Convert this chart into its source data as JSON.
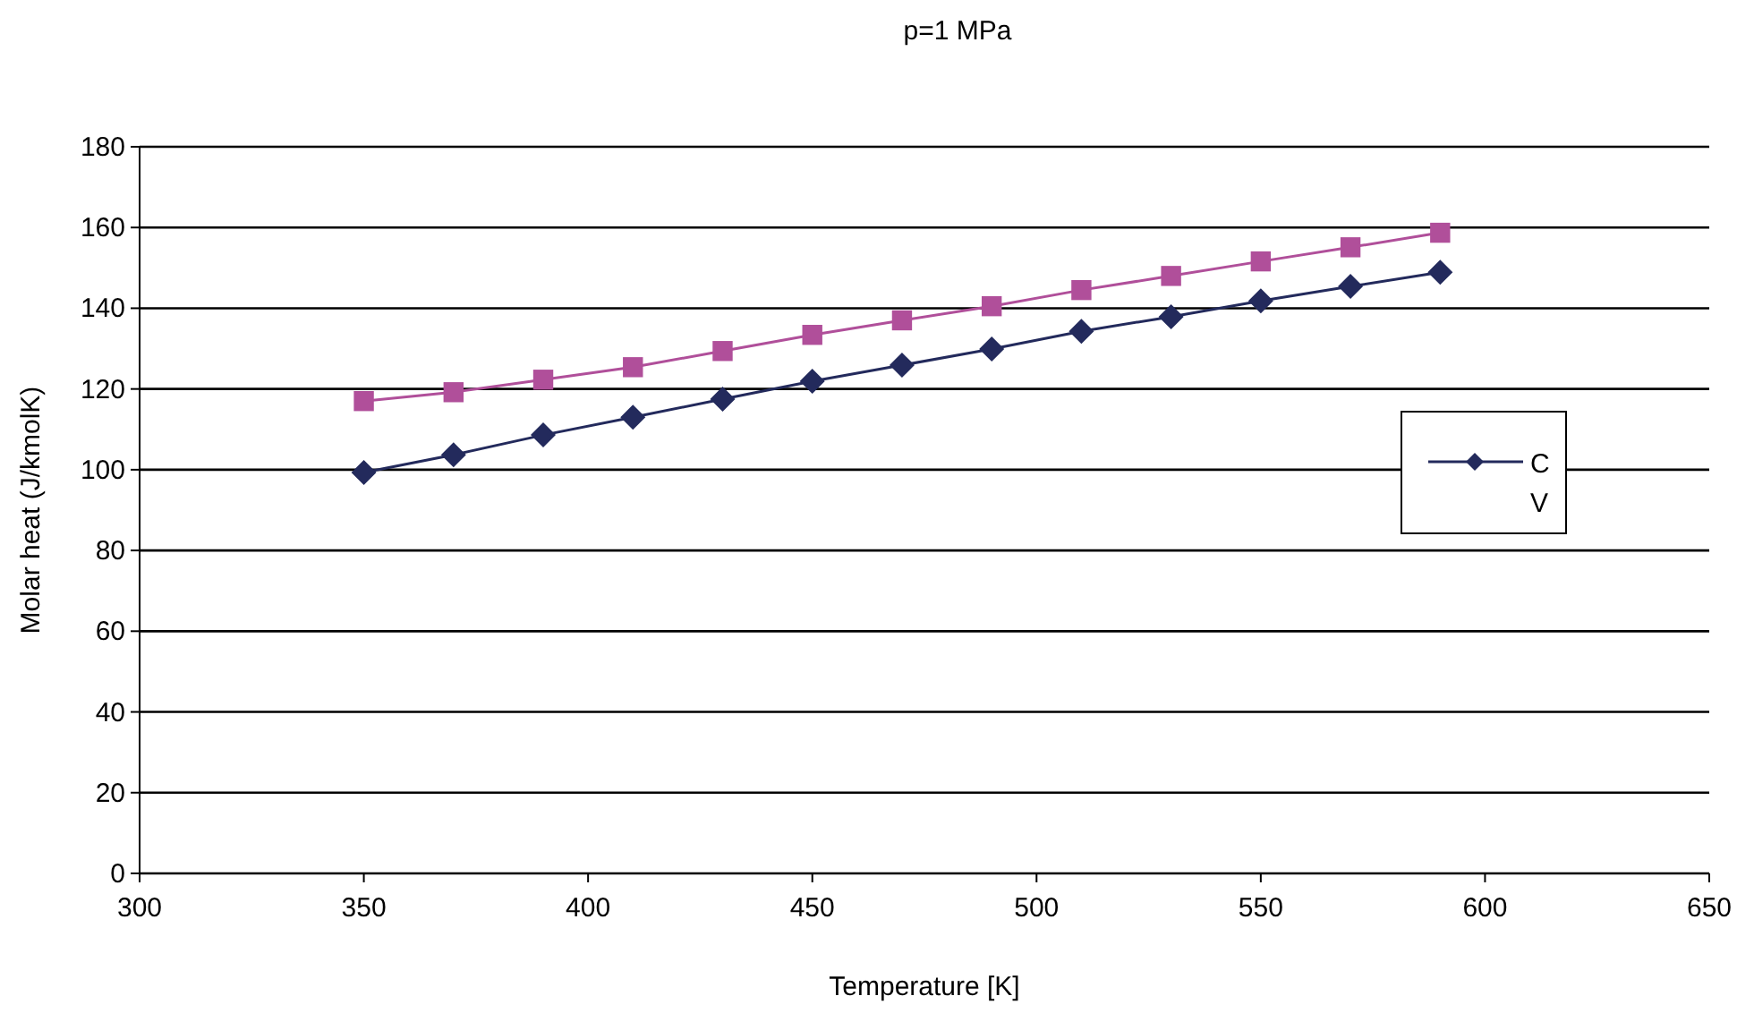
{
  "chart_data": {
    "type": "line",
    "title": "p=1 MPa",
    "xlabel": "Temperature  [K]",
    "ylabel": "Molar heat  (J/kmolK)",
    "x": [
      350,
      370,
      390,
      410,
      430,
      450,
      470,
      490,
      510,
      530,
      550,
      570,
      590
    ],
    "series": [
      {
        "name": "CV",
        "color": "#232a5c",
        "marker": "diamond",
        "values": [
          99.3,
          103.7,
          108.6,
          113,
          117.5,
          121.9,
          125.9,
          129.9,
          134.3,
          137.9,
          141.8,
          145.4,
          148.9
        ]
      },
      {
        "color": "#b04f9a",
        "marker": "square",
        "values": [
          117,
          119.2,
          122.3,
          125.4,
          129.4,
          133.4,
          137,
          140.5,
          144.5,
          148,
          151.6,
          155.1,
          158.7
        ]
      }
    ],
    "xlim": [
      300,
      650
    ],
    "xticks": [
      300,
      350,
      400,
      450,
      500,
      550,
      600,
      650
    ],
    "ylim": [
      0,
      180
    ],
    "yticks": [
      0,
      20,
      40,
      60,
      80,
      100,
      120,
      140,
      160,
      180
    ],
    "grid": "y",
    "legend": "right"
  }
}
